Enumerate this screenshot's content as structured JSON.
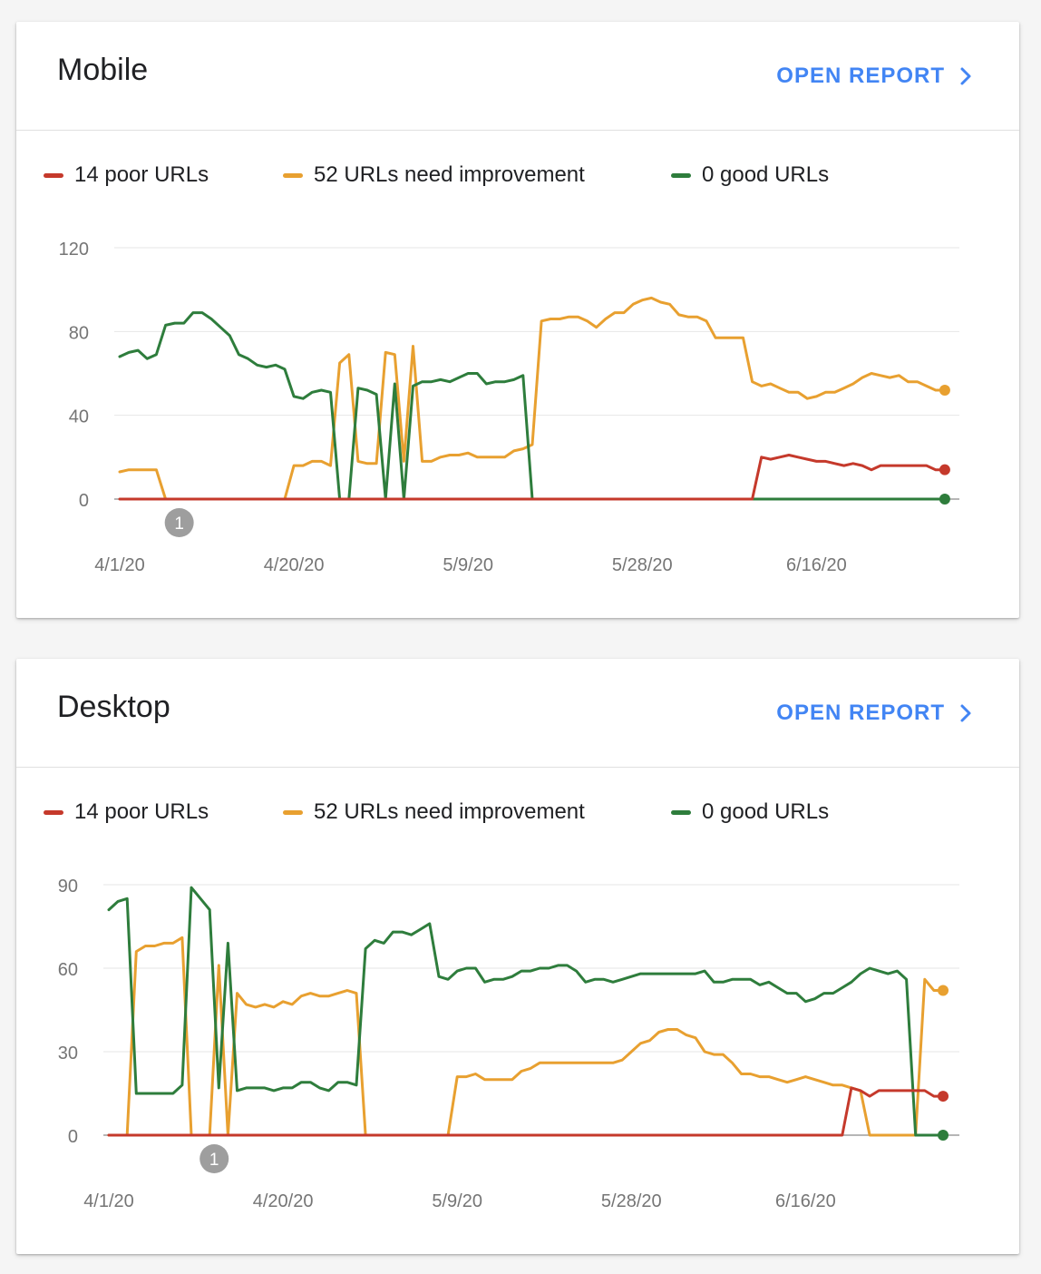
{
  "colors": {
    "poor": "#c5392b",
    "needs_improvement": "#e8a030",
    "good": "#2e7d3c",
    "accent": "#4285f4"
  },
  "cards": [
    {
      "title": "Mobile",
      "open_report": "OPEN REPORT",
      "legend": [
        "14 poor URLs",
        "52 URLs need improvement",
        "0 good URLs"
      ],
      "annotation": "1",
      "annotation_date": "2020-04-07"
    },
    {
      "title": "Desktop",
      "open_report": "OPEN REPORT",
      "legend": [
        "14 poor URLs",
        "52 URLs need improvement",
        "0 good URLs"
      ],
      "annotation": "1",
      "annotation_date": "2020-04-12"
    }
  ],
  "chart_data": [
    {
      "type": "line",
      "x_start": "2020-04-01",
      "x_ticks": [
        "4/1/20",
        "4/20/20",
        "5/9/20",
        "5/28/20",
        "6/16/20"
      ],
      "y_ticks": [
        0,
        40,
        80,
        120
      ],
      "ylim": [
        0,
        120
      ],
      "grid": true,
      "legend_position": "top",
      "series": [
        {
          "name": "14 poor URLs",
          "color": "#c5392b",
          "values": [
            0,
            0,
            0,
            0,
            0,
            0,
            0,
            0,
            0,
            0,
            0,
            0,
            0,
            0,
            0,
            0,
            0,
            0,
            0,
            0,
            0,
            0,
            0,
            0,
            0,
            0,
            0,
            0,
            0,
            0,
            0,
            0,
            0,
            0,
            0,
            0,
            0,
            0,
            0,
            0,
            0,
            0,
            0,
            0,
            0,
            0,
            0,
            0,
            0,
            0,
            0,
            0,
            0,
            0,
            0,
            0,
            0,
            0,
            0,
            0,
            0,
            0,
            0,
            0,
            0,
            0,
            0,
            0,
            0,
            0,
            20,
            19,
            20,
            21,
            20,
            19,
            18,
            18,
            17,
            16,
            17,
            16,
            14,
            16,
            16,
            16,
            16,
            16,
            16,
            14,
            14
          ]
        },
        {
          "name": "52 URLs need improvement",
          "color": "#e8a030",
          "values": [
            13,
            14,
            14,
            14,
            14,
            0,
            0,
            0,
            0,
            0,
            0,
            0,
            0,
            0,
            0,
            0,
            0,
            0,
            0,
            16,
            16,
            18,
            18,
            16,
            65,
            69,
            18,
            17,
            17,
            70,
            69,
            18,
            73,
            18,
            18,
            20,
            21,
            21,
            22,
            20,
            20,
            20,
            20,
            23,
            24,
            26,
            85,
            86,
            86,
            87,
            87,
            85,
            82,
            86,
            89,
            89,
            93,
            95,
            96,
            94,
            93,
            88,
            87,
            87,
            85,
            77,
            77,
            77,
            77,
            56,
            54,
            55,
            53,
            51,
            51,
            48,
            49,
            51,
            51,
            53,
            55,
            58,
            60,
            59,
            58,
            59,
            56,
            56,
            54,
            52,
            52
          ]
        },
        {
          "name": "0 good URLs",
          "color": "#2e7d3c",
          "values": [
            68,
            70,
            71,
            67,
            69,
            83,
            84,
            84,
            89,
            89,
            86,
            82,
            78,
            69,
            67,
            64,
            63,
            64,
            62,
            49,
            48,
            51,
            52,
            51,
            0,
            0,
            53,
            52,
            50,
            0,
            55,
            0,
            54,
            56,
            56,
            57,
            56,
            58,
            60,
            60,
            55,
            56,
            56,
            57,
            59,
            0,
            0,
            0,
            0,
            0,
            0,
            0,
            0,
            0,
            0,
            0,
            0,
            0,
            0,
            0,
            0,
            0,
            0,
            0,
            0,
            0,
            0,
            0,
            0,
            0,
            0,
            0,
            0,
            0,
            0,
            0,
            0,
            0,
            0,
            0,
            0,
            0,
            0,
            0,
            0,
            0,
            0,
            0,
            0,
            0,
            0
          ]
        }
      ]
    },
    {
      "type": "line",
      "x_start": "2020-04-01",
      "x_ticks": [
        "4/1/20",
        "4/20/20",
        "5/9/20",
        "5/28/20",
        "6/16/20"
      ],
      "y_ticks": [
        0,
        30,
        60,
        90
      ],
      "ylim": [
        0,
        90
      ],
      "grid": true,
      "legend_position": "top",
      "series": [
        {
          "name": "14 poor URLs",
          "color": "#c5392b",
          "values": [
            0,
            0,
            0,
            0,
            0,
            0,
            0,
            0,
            0,
            0,
            0,
            0,
            0,
            0,
            0,
            0,
            0,
            0,
            0,
            0,
            0,
            0,
            0,
            0,
            0,
            0,
            0,
            0,
            0,
            0,
            0,
            0,
            0,
            0,
            0,
            0,
            0,
            0,
            0,
            0,
            0,
            0,
            0,
            0,
            0,
            0,
            0,
            0,
            0,
            0,
            0,
            0,
            0,
            0,
            0,
            0,
            0,
            0,
            0,
            0,
            0,
            0,
            0,
            0,
            0,
            0,
            0,
            0,
            0,
            0,
            0,
            0,
            0,
            0,
            0,
            0,
            0,
            0,
            0,
            0,
            0,
            17,
            16,
            14,
            16,
            16,
            16,
            16,
            16,
            16,
            14,
            14
          ]
        },
        {
          "name": "52 URLs need improvement",
          "color": "#e8a030",
          "values": [
            0,
            0,
            0,
            66,
            68,
            68,
            69,
            69,
            71,
            0,
            0,
            0,
            61,
            0,
            51,
            47,
            46,
            47,
            46,
            48,
            47,
            50,
            51,
            50,
            50,
            51,
            52,
            51,
            0,
            0,
            0,
            0,
            0,
            0,
            0,
            0,
            0,
            0,
            21,
            21,
            22,
            20,
            20,
            20,
            20,
            23,
            24,
            26,
            26,
            26,
            26,
            26,
            26,
            26,
            26,
            26,
            27,
            30,
            33,
            34,
            37,
            38,
            38,
            36,
            35,
            30,
            29,
            29,
            26,
            22,
            22,
            21,
            21,
            20,
            19,
            20,
            21,
            20,
            19,
            18,
            18,
            17,
            16,
            0,
            0,
            0,
            0,
            0,
            0,
            56,
            52,
            52
          ]
        },
        {
          "name": "0 good URLs",
          "color": "#2e7d3c",
          "values": [
            81,
            84,
            85,
            15,
            15,
            15,
            15,
            15,
            18,
            89,
            85,
            81,
            17,
            69,
            16,
            17,
            17,
            17,
            16,
            17,
            17,
            19,
            19,
            17,
            16,
            19,
            19,
            18,
            67,
            70,
            69,
            73,
            73,
            72,
            74,
            76,
            57,
            56,
            59,
            60,
            60,
            55,
            56,
            56,
            57,
            59,
            59,
            60,
            60,
            61,
            61,
            59,
            55,
            56,
            56,
            55,
            56,
            57,
            58,
            58,
            58,
            58,
            58,
            58,
            58,
            59,
            55,
            55,
            56,
            56,
            56,
            54,
            55,
            53,
            51,
            51,
            48,
            49,
            51,
            51,
            53,
            55,
            58,
            60,
            59,
            58,
            59,
            56,
            0,
            0,
            0,
            0
          ]
        }
      ]
    }
  ]
}
